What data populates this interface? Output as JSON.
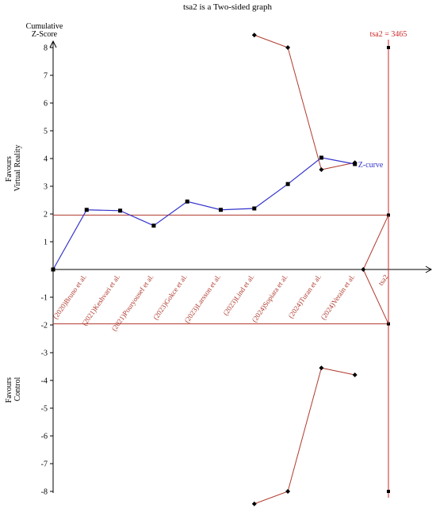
{
  "chart_data": {
    "type": "line",
    "title": "tsa2 is a Two-sided graph",
    "ylabel_lines": [
      "Cumulative",
      "Z-Score"
    ],
    "ylim": [
      -8,
      8
    ],
    "yticks": [
      -8,
      -7,
      -6,
      -5,
      -4,
      -3,
      -2,
      -1,
      1,
      2,
      3,
      4,
      5,
      6,
      7,
      8
    ],
    "categories": [
      "(2020)Bruno et al.",
      "(2021)Keshvari et al.",
      "(2021)Pouryousef et al.",
      "(2023)Gokce et al.",
      "(2023)Larsson et al.",
      "(2023)Lind et al.",
      "(2024)Sopiara et al.",
      "(2024)Turan et al.",
      "(2024)Verain et al."
    ],
    "end_label": "tsa2",
    "favours_top": [
      "Favours",
      "Virtual Reality"
    ],
    "favours_bottom": [
      "Favours",
      "Control"
    ],
    "z_curve": {
      "name": "Z-curve",
      "color": "#3333cc",
      "values": [
        0,
        2.15,
        2.12,
        1.58,
        2.45,
        2.15,
        2.2,
        3.08,
        4.03,
        3.8
      ]
    },
    "boundaries": {
      "color": "#b03a2e",
      "upper_x": [
        6,
        7,
        8,
        9
      ],
      "upper_y": [
        8.45,
        8.0,
        3.6,
        3.85
      ],
      "lower_x": [
        6,
        7,
        8,
        9
      ],
      "lower_y": [
        -8.45,
        -8.0,
        -3.55,
        -3.8
      ]
    },
    "significance": {
      "value": 1.96,
      "color": "#b03a2e"
    },
    "futility_wedge": {
      "apex_x": 9.25,
      "apex_y": 0,
      "color": "#b03a2e"
    },
    "required_information_size": {
      "label": "tsa2 = 3465",
      "color": "#cc2a2a",
      "ymin": -8,
      "ymax": 8
    }
  }
}
